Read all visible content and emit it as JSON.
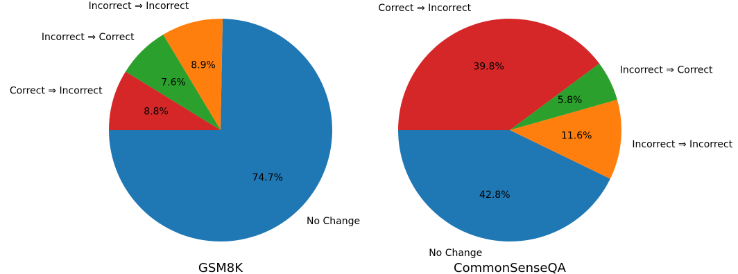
{
  "chart_data": [
    {
      "type": "pie",
      "title": "GSM8K",
      "slices": [
        {
          "label": "No Change",
          "value": 74.7,
          "pct_label": "74.7%",
          "color": "#1f77b4"
        },
        {
          "label": "Incorrect ⇒ Incorrect",
          "value": 8.9,
          "pct_label": "8.9%",
          "color": "#ff7f0e"
        },
        {
          "label": "Incorrect ⇒ Correct",
          "value": 7.6,
          "pct_label": "7.6%",
          "color": "#2ca02c"
        },
        {
          "label": "Correct ⇒ Incorrect",
          "value": 8.8,
          "pct_label": "8.8%",
          "color": "#d62728"
        }
      ]
    },
    {
      "type": "pie",
      "title": "CommonSenseQA",
      "slices": [
        {
          "label": "No Change",
          "value": 42.8,
          "pct_label": "42.8%",
          "color": "#1f77b4"
        },
        {
          "label": "Incorrect ⇒ Incorrect",
          "value": 11.6,
          "pct_label": "11.6%",
          "color": "#ff7f0e"
        },
        {
          "label": "Incorrect ⇒ Correct",
          "value": 5.8,
          "pct_label": "5.8%",
          "color": "#2ca02c"
        },
        {
          "label": "Correct ⇒ Incorrect",
          "value": 39.8,
          "pct_label": "39.8%",
          "color": "#d62728"
        }
      ]
    }
  ]
}
